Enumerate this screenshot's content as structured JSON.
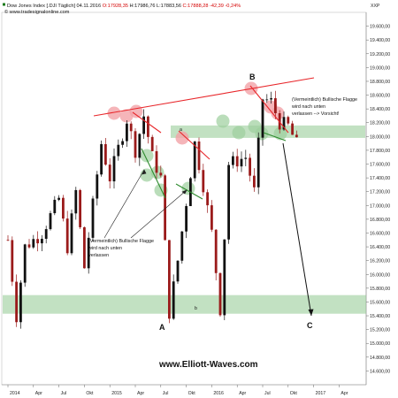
{
  "header": {
    "line1_prefix": "Dow Jones Index [.DJI Täglich] 04.11.2016 ",
    "line1_open": "O:17928,35",
    "line1_rest": " H:17986,76 L:17883,56 ",
    "line1_close": "C:17888,28 -42,39 -0,24%",
    "line2": "© www.tradesignalonline.com",
    "axis_tag": "XXP"
  },
  "watermark": "www.Elliott-Waves.com",
  "annotations": {
    "left_note": [
      "(Vermeintlich) Bullische Flagge",
      "wird nach unten",
      "verlassen"
    ],
    "right_note": [
      "(Vermeintlich) Bullische Flagge",
      "wird nach unten",
      "verlassen --> Vorsicht!"
    ],
    "wave_A": "A",
    "wave_B": "B",
    "wave_C": "C",
    "wave_a": "a",
    "wave_b": "b"
  },
  "colors": {
    "candle_up": "#111111",
    "candle_down": "#9b1b1b",
    "support_zone": "#8fc98f",
    "red_line": "#e8262a",
    "green_line": "#2e8b2e",
    "red_circle": "#f2a3a8",
    "green_circle": "#9ccf9c"
  },
  "chart_data": {
    "type": "candlestick",
    "ylim": [
      14400,
      19800
    ],
    "y_ticks": [
      "14.600,00",
      "14.800,00",
      "15.000,00",
      "15.200,00",
      "15.400,00",
      "15.600,00",
      "15.800,00",
      "16.000,00",
      "16.200,00",
      "16.400,00",
      "16.600,00",
      "16.800,00",
      "17.000,00",
      "17.200,00",
      "17.400,00",
      "17.600,00",
      "17.800,00",
      "18.000,00",
      "18.200,00",
      "18.400,00",
      "18.600,00",
      "18.800,00",
      "19.000,00",
      "19.200,00",
      "19.400,00",
      "19.600,00"
    ],
    "x_ticks": [
      "2014",
      "Apr",
      "Jul",
      "Okt",
      "2015",
      "Apr",
      "Jul",
      "Okt",
      "2016",
      "Apr",
      "Jul",
      "Okt",
      "2017",
      "Apr"
    ],
    "grid": false,
    "support_zones": [
      [
        17980,
        18160
      ],
      [
        15430,
        15700
      ]
    ],
    "price_path": [
      [
        "2014-01",
        16500
      ],
      [
        "2014-02",
        15400
      ],
      [
        "2014-03",
        16400
      ],
      [
        "2014-05",
        16600
      ],
      [
        "2014-07",
        17100
      ],
      [
        "2014-08",
        16400
      ],
      [
        "2014-09",
        17200
      ],
      [
        "2014-10",
        16100
      ],
      [
        "2014-12",
        17900
      ],
      [
        "2015-01",
        17400
      ],
      [
        "2015-03",
        18250
      ],
      [
        "2015-04",
        17800
      ],
      [
        "2015-05",
        18300
      ],
      [
        "2015-06",
        17700
      ],
      [
        "2015-07",
        17400
      ],
      [
        "2015-08",
        15450
      ],
      [
        "2015-09",
        16200
      ],
      [
        "2015-11",
        17900
      ],
      [
        "2015-12",
        17300
      ],
      [
        "2016-01",
        16600
      ],
      [
        "2016-02",
        15500
      ],
      [
        "2016-03",
        17600
      ],
      [
        "2016-05",
        17700
      ],
      [
        "2016-06",
        17200
      ],
      [
        "2016-07",
        18550
      ],
      [
        "2016-08",
        18500
      ],
      [
        "2016-09",
        18200
      ],
      [
        "2016-10",
        18150
      ],
      [
        "2016-11",
        17888
      ]
    ],
    "projection": {
      "from": [
        "2016-11",
        17900
      ],
      "to": [
        "2017-01",
        15500
      ]
    }
  }
}
